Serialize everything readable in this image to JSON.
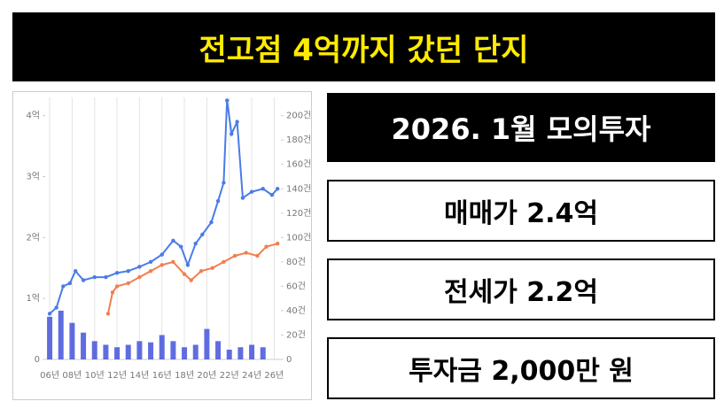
{
  "header": {
    "title": "전고점 4억까지 갔던 단지"
  },
  "chart_data": {
    "type": "line",
    "xlim": [
      5.6,
      26.6
    ],
    "xticks": [
      {
        "value": 6,
        "label": "06년"
      },
      {
        "value": 8,
        "label": "08년"
      },
      {
        "value": 10,
        "label": "10년"
      },
      {
        "value": 12,
        "label": "12년"
      },
      {
        "value": 14,
        "label": "14년"
      },
      {
        "value": 16,
        "label": "16년"
      },
      {
        "value": 18,
        "label": "18년"
      },
      {
        "value": 20,
        "label": "20년"
      },
      {
        "value": 22,
        "label": "22년"
      },
      {
        "value": 24,
        "label": "24년"
      },
      {
        "value": 26,
        "label": "26년"
      }
    ],
    "ylim": [
      0,
      4.3
    ],
    "yticks": [
      0,
      {
        "value": 1,
        "label": "1억"
      },
      {
        "value": 2,
        "label": "2억"
      },
      {
        "value": 3,
        "label": "3억"
      },
      {
        "value": 4,
        "label": "4억"
      }
    ],
    "y2lim": [
      0,
      215
    ],
    "y2ticks": [
      0,
      {
        "value": 20,
        "label": "20건"
      },
      {
        "value": 40,
        "label": "40건"
      },
      {
        "value": 60,
        "label": "60건"
      },
      {
        "value": 80,
        "label": "80건"
      },
      {
        "value": 100,
        "label": "100건"
      },
      {
        "value": 120,
        "label": "120건"
      },
      {
        "value": 140,
        "label": "140건"
      },
      {
        "value": 160,
        "label": "160건"
      },
      {
        "value": 180,
        "label": "180건"
      },
      {
        "value": 200,
        "label": "200건"
      }
    ],
    "grid": true,
    "series": [
      {
        "color": "#4a7be8",
        "x": [
          6,
          6.6,
          7.2,
          7.8,
          8.3,
          9,
          10,
          11,
          12,
          13,
          14,
          15,
          16,
          17,
          17.7,
          18.3,
          19,
          19.6,
          20.4,
          21,
          21.5,
          21.8,
          22.2,
          22.7,
          23.2,
          24,
          25,
          25.8,
          26.3
        ],
        "values": [
          0.75,
          0.85,
          1.2,
          1.25,
          1.45,
          1.3,
          1.35,
          1.35,
          1.42,
          1.45,
          1.52,
          1.6,
          1.72,
          1.95,
          1.85,
          1.55,
          1.9,
          2.05,
          2.25,
          2.6,
          2.9,
          4.25,
          3.7,
          3.9,
          2.65,
          2.75,
          2.8,
          2.7,
          2.8
        ]
      },
      {
        "color": "#f08050",
        "x": [
          11.2,
          11.6,
          12,
          13,
          14,
          15,
          16,
          17,
          18,
          18.6,
          19.5,
          20.5,
          21.5,
          22.5,
          23.5,
          24.5,
          25.3,
          26.3
        ],
        "values": [
          0.75,
          1.1,
          1.2,
          1.25,
          1.35,
          1.45,
          1.55,
          1.6,
          1.4,
          1.3,
          1.45,
          1.5,
          1.6,
          1.7,
          1.75,
          1.7,
          1.85,
          1.9
        ]
      },
      {
        "type": "bar",
        "axis": "y2",
        "color": "#3848d8",
        "x": [
          6,
          7,
          8,
          9,
          10,
          11,
          12,
          13,
          14,
          15,
          16,
          17,
          18,
          19,
          20,
          21,
          22,
          23,
          24,
          25
        ],
        "values": [
          35,
          40,
          30,
          22,
          15,
          12,
          10,
          12,
          15,
          14,
          20,
          15,
          10,
          12,
          25,
          15,
          8,
          10,
          12,
          10
        ]
      }
    ]
  },
  "info": [
    "2026. 1월 모의투자",
    "매매가 2.4억",
    "전세가 2.2억",
    "투자금 2,000만 원"
  ]
}
